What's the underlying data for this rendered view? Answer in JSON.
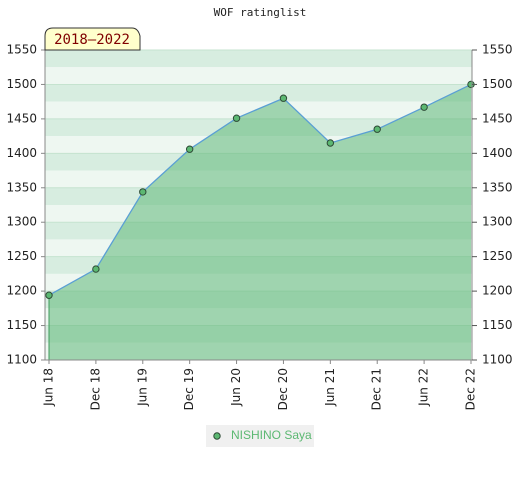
{
  "chart_data": {
    "type": "area",
    "title": "WOF ratinglist",
    "annotation": "2018–2022",
    "categories": [
      "Jun 18",
      "Dec 18",
      "Jun 19",
      "Dec 19",
      "Jun 20",
      "Dec 20",
      "Jun 21",
      "Dec 21",
      "Jun 22",
      "Dec 22"
    ],
    "series": [
      {
        "name": "NISHINO Saya",
        "color": "#5cb872",
        "line_color": "#5a9fd4",
        "area_color": "#5fb878",
        "values": [
          1194,
          1232,
          1344,
          1406,
          1451,
          1480,
          1415,
          1435,
          1467,
          1500
        ]
      }
    ],
    "ylim": [
      1100,
      1550
    ],
    "yticks": [
      1100,
      1150,
      1200,
      1250,
      1300,
      1350,
      1400,
      1450,
      1500,
      1550
    ],
    "y2lim": [
      1100,
      1550
    ],
    "y2ticks": [
      1100,
      1150,
      1200,
      1250,
      1300,
      1350,
      1400,
      1450,
      1500,
      1550
    ],
    "grid": true,
    "legend": "bottom"
  }
}
